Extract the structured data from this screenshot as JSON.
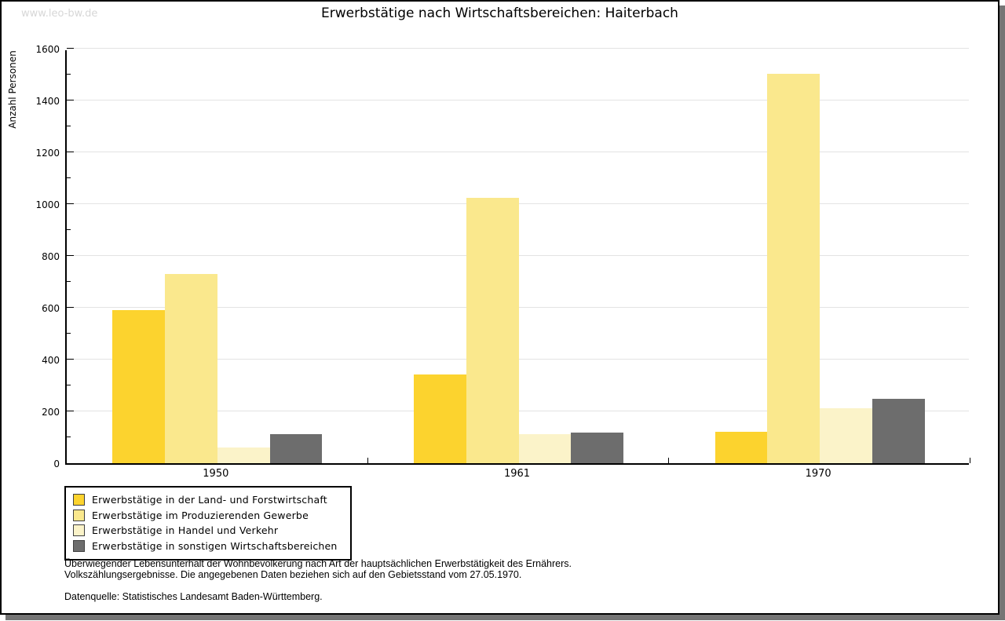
{
  "watermark": "www.leo-bw.de",
  "title": "Erwerbstätige nach Wirtschaftsbereichen: Haiterbach",
  "chart_data": {
    "type": "bar",
    "title": "Erwerbstätige nach Wirtschaftsbereichen: Haiterbach",
    "xlabel": "",
    "ylabel": "Anzahl Personen",
    "categories": [
      "1950",
      "1961",
      "1970"
    ],
    "series": [
      {
        "name": "Erwerbstätige in der Land- und Forstwirtschaft",
        "color": "#FCD32E",
        "values": [
          590,
          343,
          121
        ]
      },
      {
        "name": "Erwerbstätige im Produzierenden Gewerbe",
        "color": "#FAE88D",
        "values": [
          731,
          1024,
          1502
        ]
      },
      {
        "name": "Erwerbstätige in Handel und Verkehr",
        "color": "#FBF3C9",
        "values": [
          61,
          112,
          213
        ]
      },
      {
        "name": "Erwerbstätige in sonstigen Wirtschaftsbereichen",
        "color": "#6D6D6D",
        "values": [
          113,
          117,
          248
        ]
      }
    ],
    "ylim": [
      0,
      1600
    ],
    "ytick_step": 200,
    "yminor_step": 100,
    "grid": true,
    "legend_position": "bottom-left"
  },
  "footnotes": {
    "line1": "Überwiegender Lebensunterhalt der Wohnbevölkerung nach Art der hauptsächlichen Erwerbstätigkeit des Ernährers.",
    "line2": "Volkszählungsergebnisse. Die angegebenen Daten beziehen sich auf den Gebietsstand vom 27.05.1970.",
    "source": "Datenquelle: Statistisches Landesamt Baden-Württemberg."
  }
}
